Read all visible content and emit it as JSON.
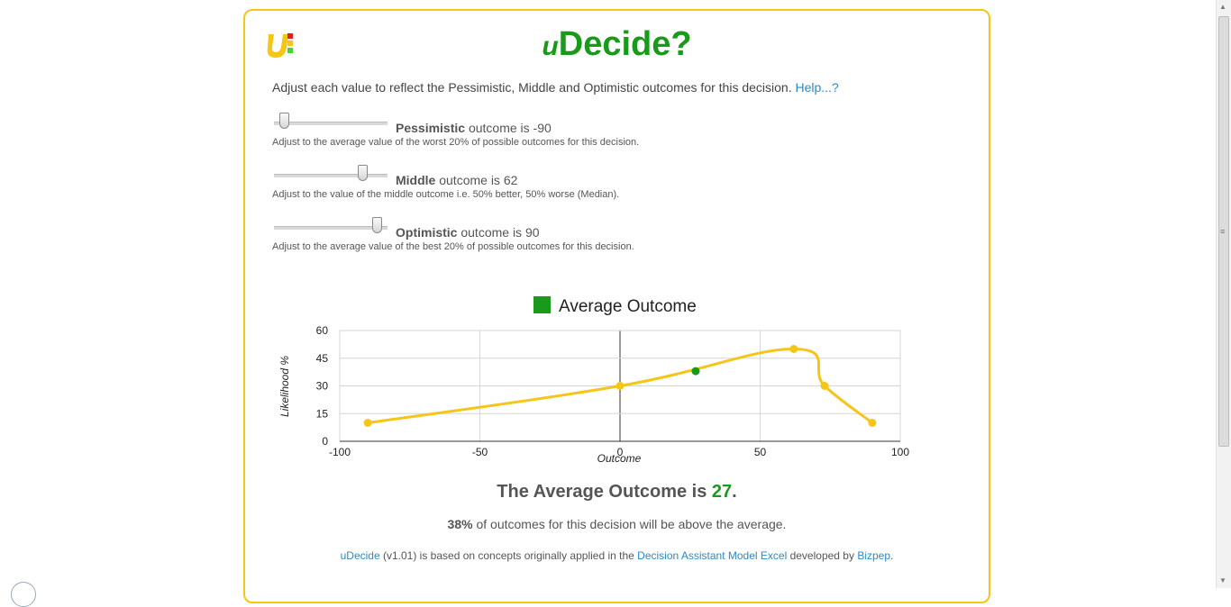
{
  "app": {
    "title_prefix": "u",
    "title_main": "Decide?"
  },
  "intro": {
    "text": "Adjust each value to reflect the Pessimistic, Middle and Optimistic outcomes for this decision. ",
    "help_link": "Help...?"
  },
  "sliders": [
    {
      "name": "Pessimistic",
      "suffix": " outcome is -90",
      "value": -90,
      "fraction": 0.05,
      "help": "Adjust to the average value of the worst 20% of possible outcomes for this decision."
    },
    {
      "name": "Middle",
      "suffix": " outcome is 62",
      "value": 62,
      "fraction": 0.81,
      "help": "Adjust to the value of the middle outcome i.e. 50% better, 50% worse (Median)."
    },
    {
      "name": "Optimistic",
      "suffix": " outcome is 90",
      "value": 90,
      "fraction": 0.95,
      "help": "Adjust to the average value of the best 20% of possible outcomes for this decision."
    }
  ],
  "chart_data": {
    "type": "line",
    "legend": "Average Outcome",
    "xlabel": "Outcome",
    "ylabel": "Likelihood %",
    "xlim": [
      -100,
      100
    ],
    "ylim": [
      0,
      60
    ],
    "x_ticks": [
      "-100",
      "-50",
      "0",
      "50",
      "100"
    ],
    "y_ticks": [
      "0",
      "15",
      "30",
      "45",
      "60"
    ],
    "grid": true,
    "series": [
      {
        "x": [
          -90,
          0,
          62,
          73,
          90
        ],
        "y": [
          10,
          30,
          50,
          30,
          10
        ]
      }
    ],
    "average_point": {
      "x": 27,
      "y": 38
    }
  },
  "result": {
    "prefix": "The Average Outcome is ",
    "value": "27",
    "suffix": "."
  },
  "above": {
    "percent": "38%",
    "text": " of outcomes for this decision will be above the average."
  },
  "credits": {
    "app_link": "uDecide",
    "text1": " (v1.01) is based on concepts originally applied in the ",
    "dam_link": "Decision Assistant Model Excel",
    "text2": " developed by ",
    "author_link": "Bizpep",
    "text3": "."
  },
  "colors": {
    "accent_green": "#1a9a1a",
    "border_yellow": "#f5c518",
    "line_yellow": "#f5c518",
    "link_blue": "#2a8ac9"
  }
}
